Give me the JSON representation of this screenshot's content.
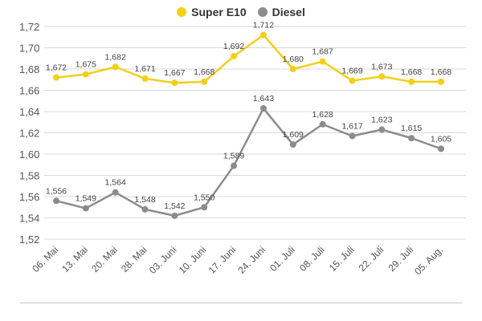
{
  "chart_data": {
    "type": "line",
    "title": "",
    "xlabel": "",
    "ylabel": "",
    "ylim": [
      1.52,
      1.72
    ],
    "yticks": [
      "1,52",
      "1,54",
      "1,56",
      "1,58",
      "1,60",
      "1,62",
      "1,64",
      "1,66",
      "1,68",
      "1,70",
      "1,72"
    ],
    "grid": true,
    "legend_position": "top-center",
    "categories": [
      "06. Mai",
      "13. Mai",
      "20. Mai",
      "28. Mai",
      "03. Juni",
      "10. Juni",
      "17. Juni",
      "24. Juni",
      "01. Juli",
      "08. Juli",
      "15. Juli",
      "22. Juli",
      "29. Juli",
      "05. Aug."
    ],
    "series": [
      {
        "name": "Super E10",
        "color": "#f2cf1a",
        "values": [
          1.672,
          1.675,
          1.682,
          1.671,
          1.667,
          1.668,
          1.692,
          1.712,
          1.68,
          1.687,
          1.669,
          1.673,
          1.668,
          1.668
        ],
        "labels": [
          "1,672",
          "1,675",
          "1,682",
          "1,671",
          "1,667",
          "1,668",
          "1,692",
          "1,712",
          "1,680",
          "1,687",
          "1,669",
          "1,673",
          "1,668",
          "1,668"
        ]
      },
      {
        "name": "Diesel",
        "color": "#8c8c8c",
        "values": [
          1.556,
          1.549,
          1.564,
          1.548,
          1.542,
          1.55,
          1.589,
          1.643,
          1.609,
          1.628,
          1.617,
          1.623,
          1.615,
          1.605
        ],
        "labels": [
          "1,556",
          "1,549",
          "1,564",
          "1,548",
          "1,542",
          "1,550",
          "1,589",
          "1,643",
          "1,609",
          "1,628",
          "1,617",
          "1,623",
          "1,615",
          "1,605"
        ]
      }
    ]
  }
}
